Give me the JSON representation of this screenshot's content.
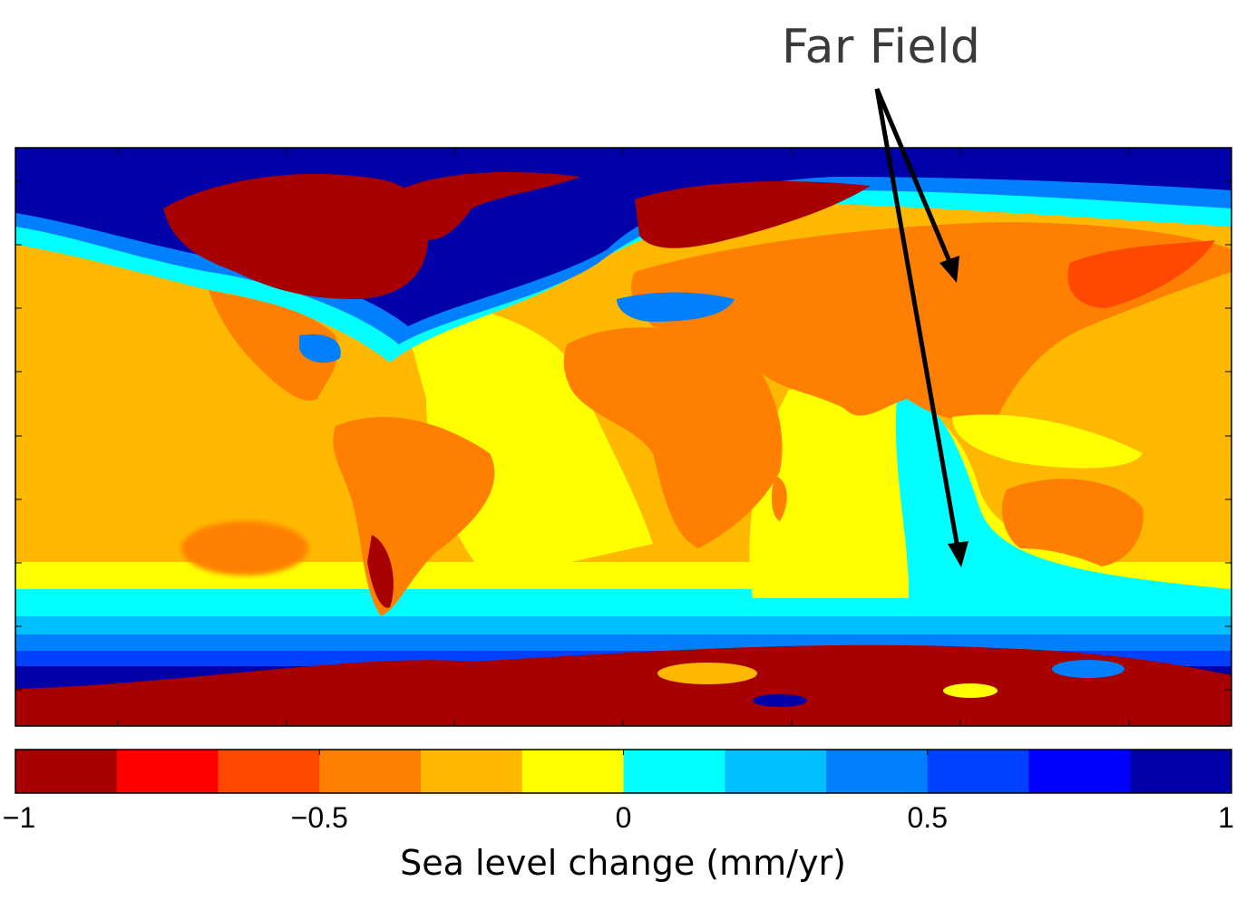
{
  "annotation": {
    "text": "Far Field"
  },
  "map": {
    "projection": "equirectangular",
    "fill_levels_hex": {
      "ocean_deep_blue": "#0000a8",
      "land_dark_red": "#a80000",
      "orange": "#ff8000",
      "light_orange": "#ffb800",
      "yellow": "#ffff00",
      "cyan": "#00ffff",
      "mid_blue": "#0080ff"
    }
  },
  "colorbar": {
    "colors": [
      "#a80000",
      "#ff0000",
      "#ff4800",
      "#ff8000",
      "#ffb800",
      "#ffff00",
      "#00ffff",
      "#00c0ff",
      "#0080ff",
      "#0040ff",
      "#0000ff",
      "#0000a8"
    ],
    "min": -1,
    "max": 1,
    "ticks": [
      {
        "value": -1,
        "label": "−1"
      },
      {
        "value": -0.5,
        "label": "−0.5"
      },
      {
        "value": 0,
        "label": "0"
      },
      {
        "value": 0.5,
        "label": "0.5"
      },
      {
        "value": 1,
        "label": "1"
      }
    ],
    "label": "Sea level change (mm/yr)"
  }
}
